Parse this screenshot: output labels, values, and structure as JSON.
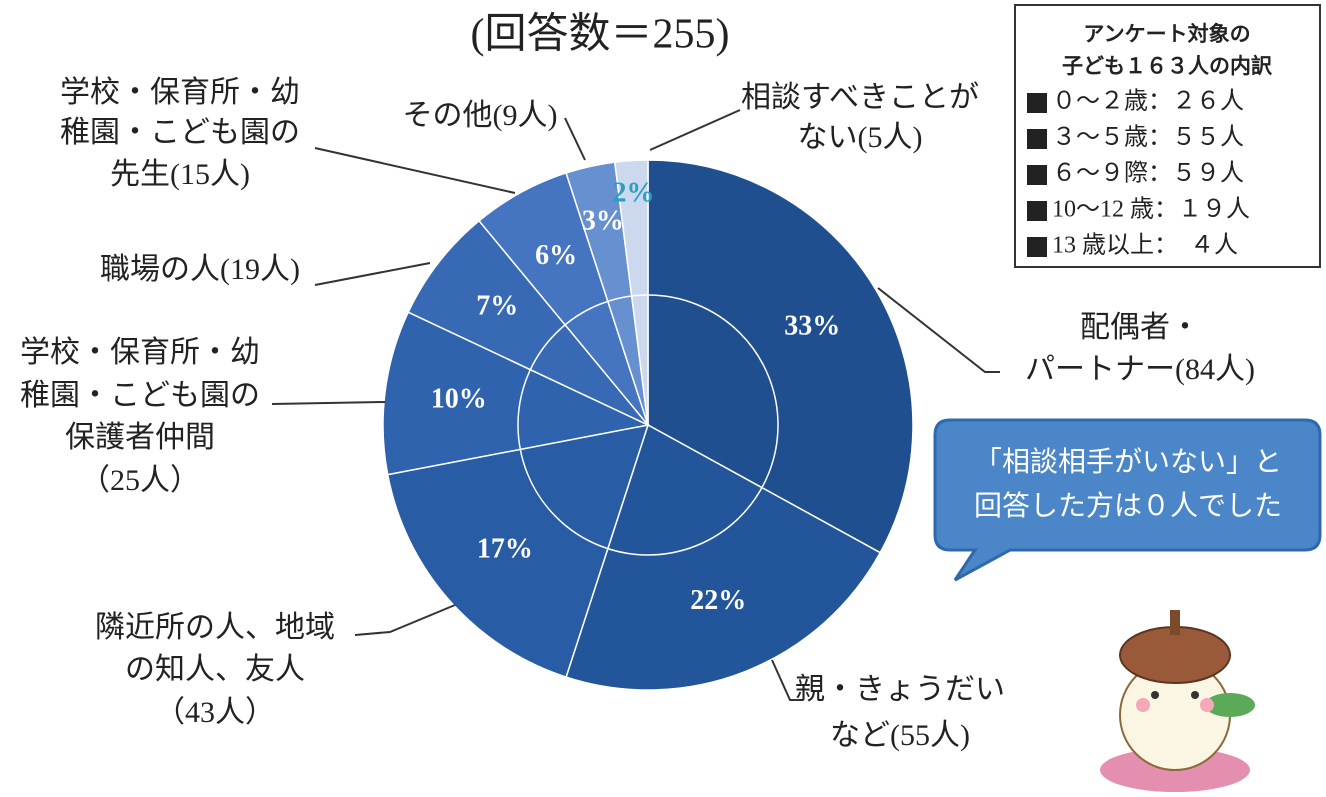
{
  "chart_data": {
    "type": "pie",
    "title": "(回答数＝255)",
    "categories": [
      [
        "配偶者・",
        "パートナー(84人)"
      ],
      [
        "親・きょうだい",
        "など(55人)"
      ],
      [
        "隣近所の人、地域",
        "の知人、友人",
        "（43人）"
      ],
      [
        "学校・保育所・幼",
        "稚園・こども園の",
        "保護者仲間",
        "（25人）"
      ],
      [
        "職場の人(19人)"
      ],
      [
        "学校・保育所・幼",
        "稚園・こども園の",
        "先生(15人)"
      ],
      [
        "その他(9人)"
      ],
      [
        "相談すべきことが",
        "ない(5人)"
      ]
    ],
    "values": [
      33,
      22,
      17,
      10,
      7,
      6,
      3,
      2
    ],
    "value_labels": [
      "33%",
      "22%",
      "17%",
      "10%",
      "7%",
      "6%",
      "3%",
      "2%"
    ],
    "colors": [
      "#1f4f8e",
      "#22559a",
      "#285ca5",
      "#2f63ad",
      "#3869b5",
      "#4574c0",
      "#6690cf",
      "#cbd8ee"
    ]
  },
  "legend_box": {
    "title": [
      "アンケート対象の",
      "子ども１６３人の内訳"
    ],
    "items": [
      "０～２歳：２６人",
      "３～５歳：５５人",
      "６～９際：５９人",
      "10～12 歳：１９人",
      "13 歳以上：　４人"
    ]
  },
  "callout": [
    "「相談相手がいない」と",
    "回答した方は０人でした"
  ]
}
